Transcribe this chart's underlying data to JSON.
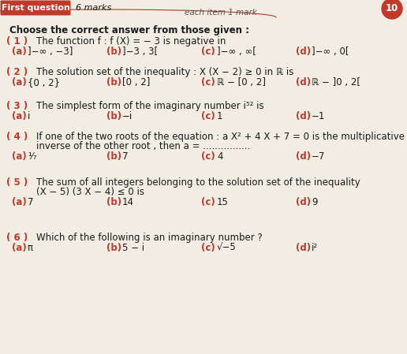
{
  "title_box_text": "First question",
  "title_box_color": "#c0392b",
  "marks_text": "6 marks",
  "each_item_text": "each item 1 mark",
  "page_number": "10",
  "intro": "Choose the correct answer from those given :",
  "questions": [
    {
      "num": "( 1 )",
      "text": "The function f : f (X) = − 3 is negative in",
      "options": [
        {
          "label": "(a)",
          "text": "]−∞ , −3]"
        },
        {
          "label": "(b)",
          "text": "]−3 , 3["
        },
        {
          "label": "(c)",
          "text": "]−∞ , ∞["
        },
        {
          "label": "(d)",
          "text": "]−∞ , 0["
        }
      ],
      "has_text2": false
    },
    {
      "num": "( 2 )",
      "text": "The solution set of the inequality : X (X − 2) ≥ 0 in ℝ is",
      "options": [
        {
          "label": "(a)",
          "text": "{0 , 2}"
        },
        {
          "label": "(b)",
          "text": "[0 , 2]"
        },
        {
          "label": "(c)",
          "text": "ℝ − [0 , 2]"
        },
        {
          "label": "(d)",
          "text": "ℝ − ]0 , 2["
        }
      ],
      "has_text2": false
    },
    {
      "num": "( 3 )",
      "text": "The simplest form of the imaginary number i⁵² is",
      "options": [
        {
          "label": "(a)",
          "text": "i"
        },
        {
          "label": "(b)",
          "text": "−i"
        },
        {
          "label": "(c)",
          "text": "1"
        },
        {
          "label": "(d)",
          "text": "−1"
        }
      ],
      "has_text2": false
    },
    {
      "num": "( 4 )",
      "text": "If one of the two roots of the equation : a X² + 4 X + 7 = 0 is the multiplicative",
      "text2": "inverse of the other root , then a = ................",
      "options": [
        {
          "label": "(a)",
          "text": "¹⁄₇"
        },
        {
          "label": "(b)",
          "text": "7"
        },
        {
          "label": "(c)",
          "text": "4"
        },
        {
          "label": "(d)",
          "text": "−7"
        }
      ],
      "has_text2": true
    },
    {
      "num": "( 5 )",
      "text": "The sum of all integers belonging to the solution set of the inequality",
      "text2": "(X − 5) (3 X − 4) ≤ 0 is",
      "options": [
        {
          "label": "(a)",
          "text": "7"
        },
        {
          "label": "(b)",
          "text": "14"
        },
        {
          "label": "(c)",
          "text": "15"
        },
        {
          "label": "(d)",
          "text": "9"
        }
      ],
      "has_text2": true
    },
    {
      "num": "( 6 )",
      "text": "Which of the following is an imaginary number ?",
      "options": [
        {
          "label": "(a)",
          "text": "π"
        },
        {
          "label": "(b)",
          "text": "5 − i"
        },
        {
          "label": "(c)",
          "text": "√−5"
        },
        {
          "label": "(d)",
          "text": "i²"
        }
      ],
      "has_text2": false
    }
  ],
  "bg_color": "#f2ede3",
  "text_color": "#1a1a1a",
  "question_color": "#c0392b",
  "option_label_color": "#c0392b",
  "line_color": "#c0392b",
  "font_size_question": 8.5,
  "font_size_options": 8.5,
  "font_size_header": 8.5
}
